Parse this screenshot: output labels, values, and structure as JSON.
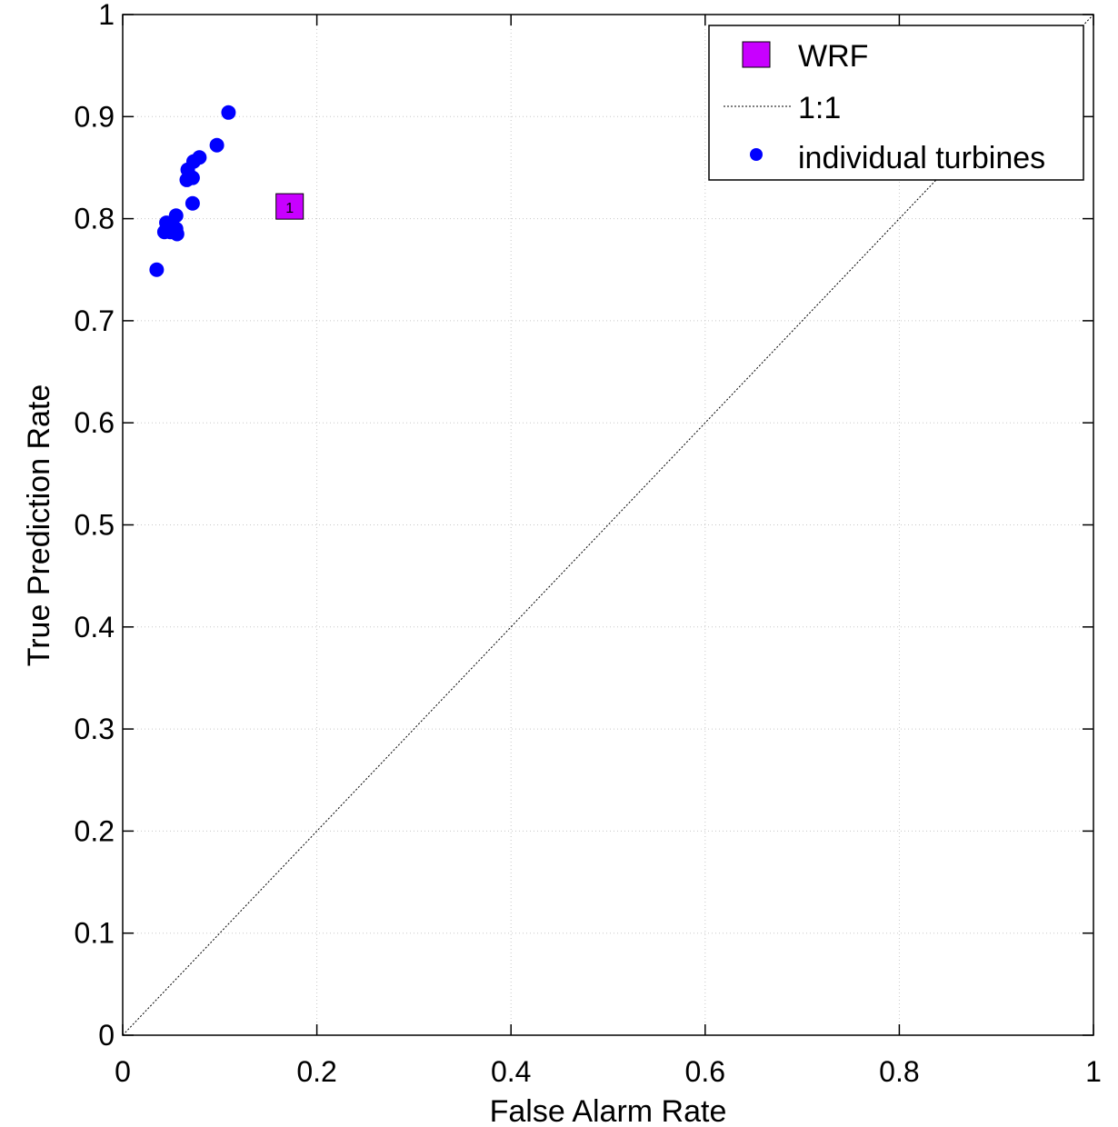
{
  "chart_data": {
    "type": "scatter",
    "xlabel": "False Alarm Rate",
    "ylabel": "True Prediction Rate",
    "xlim": [
      0,
      1
    ],
    "ylim": [
      0,
      1
    ],
    "xticks": [
      "0",
      "0.2",
      "0.4",
      "0.6",
      "0.8",
      "1"
    ],
    "yticks": [
      "0",
      "0.1",
      "0.2",
      "0.3",
      "0.4",
      "0.5",
      "0.6",
      "0.7",
      "0.8",
      "0.9",
      "1"
    ],
    "grid": true,
    "legend_position": "top-right",
    "series": [
      {
        "name": "WRF",
        "marker": "square",
        "color": "#c800ff",
        "points": [
          {
            "x": 0.172,
            "y": 0.812,
            "label": "1"
          }
        ]
      },
      {
        "name": "1:1",
        "style": "dotted-line",
        "color": "#000000",
        "points": [
          {
            "x": 0,
            "y": 0
          },
          {
            "x": 1,
            "y": 1
          }
        ]
      },
      {
        "name": "individual turbines",
        "marker": "circle",
        "color": "#0000ff",
        "points": [
          {
            "x": 0.109,
            "y": 0.904
          },
          {
            "x": 0.097,
            "y": 0.872
          },
          {
            "x": 0.079,
            "y": 0.86
          },
          {
            "x": 0.073,
            "y": 0.856
          },
          {
            "x": 0.067,
            "y": 0.848
          },
          {
            "x": 0.072,
            "y": 0.84
          },
          {
            "x": 0.066,
            "y": 0.838
          },
          {
            "x": 0.072,
            "y": 0.815
          },
          {
            "x": 0.055,
            "y": 0.803
          },
          {
            "x": 0.045,
            "y": 0.796
          },
          {
            "x": 0.055,
            "y": 0.79
          },
          {
            "x": 0.043,
            "y": 0.787
          },
          {
            "x": 0.049,
            "y": 0.787
          },
          {
            "x": 0.056,
            "y": 0.785
          },
          {
            "x": 0.035,
            "y": 0.75
          }
        ]
      }
    ]
  }
}
